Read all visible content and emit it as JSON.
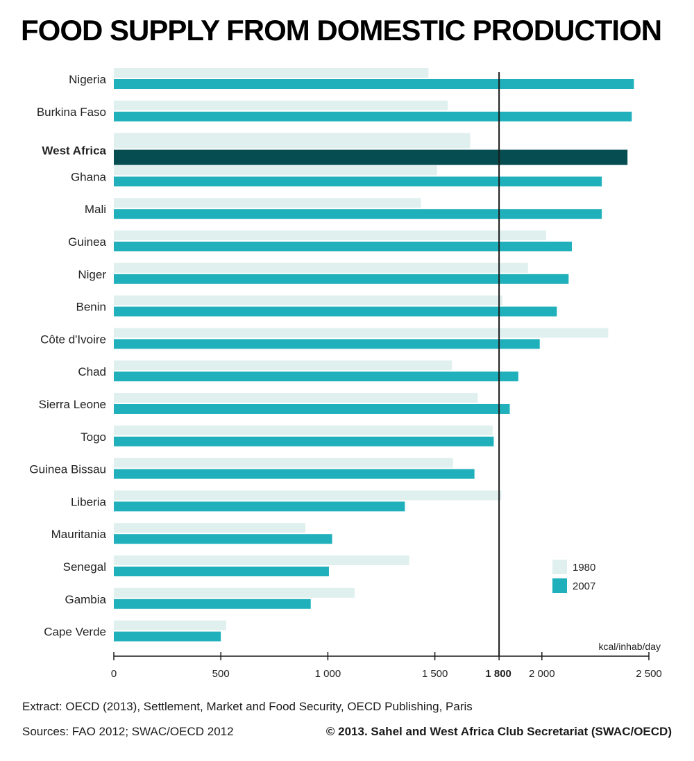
{
  "title": "FOOD SUPPLY FROM DOMESTIC PRODUCTION",
  "footer": {
    "extract": "Extract: OECD (2013), Settlement, Market and Food Security, OECD Publishing, Paris",
    "sources": "Sources: FAO 2012; SWAC/OECD 2012",
    "copyright": "© 2013. Sahel and West Africa Club Secretariat (SWAC/OECD)"
  },
  "chart_data": {
    "type": "bar",
    "orientation": "horizontal",
    "title": "FOOD SUPPLY FROM DOMESTIC PRODUCTION",
    "unit_label": "kcal/inhab/day",
    "xlim": [
      0,
      2500
    ],
    "ticks": [
      {
        "value": 0,
        "label": "0"
      },
      {
        "value": 500,
        "label": "500"
      },
      {
        "value": 1000,
        "label": "1 000"
      },
      {
        "value": 1500,
        "label": "1 500"
      },
      {
        "value": 1800,
        "label": "1 800",
        "bold": true
      },
      {
        "value": 2000,
        "label": "2 000"
      },
      {
        "value": 2500,
        "label": "2 500"
      }
    ],
    "reference_line": {
      "value": 1800
    },
    "categories": [
      "Nigeria",
      "Burkina Faso",
      "West Africa",
      "Ghana",
      "Mali",
      "Guinea",
      "Niger",
      "Benin",
      "Côte d'Ivoire",
      "Chad",
      "Sierra Leone",
      "Togo",
      "Guinea Bissau",
      "Liberia",
      "Mauritania",
      "Senegal",
      "Gambia",
      "Cape Verde"
    ],
    "highlight_category": "West Africa",
    "series": [
      {
        "name": "1980",
        "color": "#dff0ee",
        "values": [
          1470,
          1560,
          1665,
          1510,
          1435,
          2020,
          1935,
          1815,
          2310,
          1580,
          1700,
          1770,
          1585,
          1810,
          895,
          1380,
          1125,
          525
        ]
      },
      {
        "name": "2007",
        "color": "#1fb0bb",
        "values": [
          2430,
          2420,
          2400,
          2280,
          2280,
          2140,
          2125,
          2070,
          1990,
          1890,
          1850,
          1775,
          1685,
          1360,
          1020,
          1005,
          920,
          500
        ]
      }
    ],
    "highlight_color": "#064d52",
    "grid": false,
    "legend_position": "bottom-right"
  }
}
